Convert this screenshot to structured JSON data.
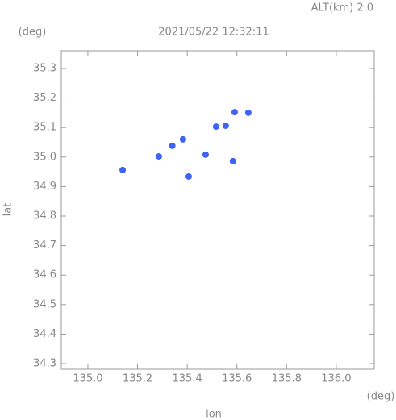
{
  "chart_data": {
    "type": "scatter",
    "title": "2021/05/22 12:32:11",
    "annotation": "ALT(km) 2.0",
    "x_label": "lon",
    "y_label": "lat",
    "x_unit": "(deg)",
    "y_unit": "(deg)",
    "xlim": [
      134.893,
      136.153
    ],
    "ylim": [
      34.281,
      35.36
    ],
    "xticks": [
      {
        "value": 135.0,
        "label": "135.0"
      },
      135.2,
      135.4,
      135.6,
      135.8,
      {
        "value": 136.0,
        "label": "136.0"
      }
    ],
    "yticks": [
      {
        "value": 34.3,
        "label": "34.3"
      },
      34.4,
      34.5,
      34.6,
      34.7,
      34.8,
      34.9,
      {
        "value": 35.0,
        "label": "35.0"
      },
      35.1,
      35.2,
      35.3
    ],
    "series": [
      {
        "color": "#3f63f2",
        "x": [
          135.14,
          135.286,
          135.34,
          135.383,
          135.406,
          135.474,
          135.516,
          135.555,
          135.591,
          135.584,
          135.646
        ],
        "values": [
          34.956,
          35.002,
          35.038,
          35.06,
          34.934,
          35.008,
          35.103,
          35.106,
          35.152,
          34.986,
          35.15
        ]
      }
    ]
  }
}
